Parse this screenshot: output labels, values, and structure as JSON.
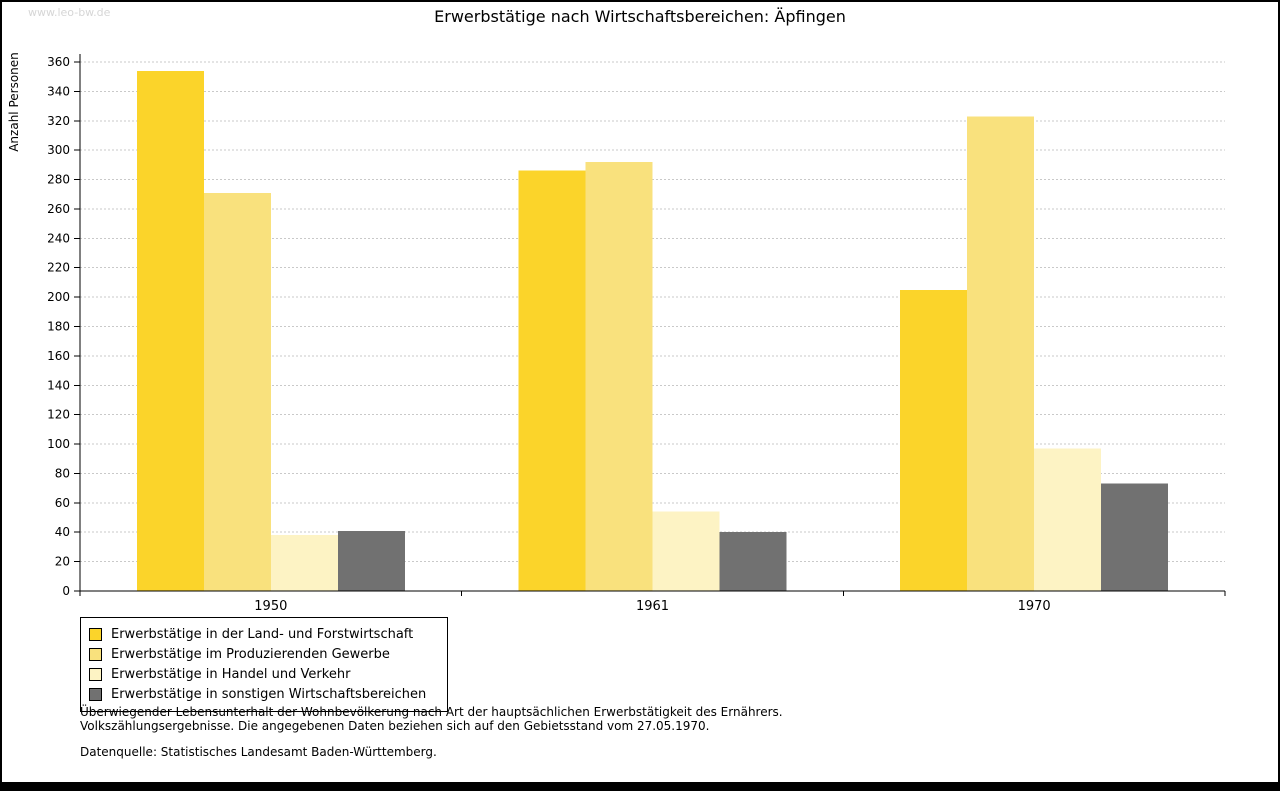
{
  "watermark": "www.leo-bw.de",
  "title": "Erwerbstätige nach Wirtschaftsbereichen: Äpfingen",
  "ylabel": "Anzahl Personen",
  "chart_data": {
    "type": "bar",
    "categories": [
      "1950",
      "1961",
      "1970"
    ],
    "series": [
      {
        "name": "Erwerbstätige in der Land- und Forstwirtschaft",
        "color": "#FBD42A",
        "values": [
          354,
          286,
          205
        ]
      },
      {
        "name": "Erwerbstätige im Produzierenden Gewerbe",
        "color": "#F9E17D",
        "values": [
          271,
          292,
          323
        ]
      },
      {
        "name": "Erwerbstätige in Handel und Verkehr",
        "color": "#FDF3C4",
        "values": [
          38,
          54,
          97
        ]
      },
      {
        "name": "Erwerbstätige in sonstigen Wirtschaftsbereichen",
        "color": "#717171",
        "values": [
          41,
          40,
          73
        ]
      }
    ],
    "title": "Erwerbstätige nach Wirtschaftsbereichen: Äpfingen",
    "xlabel": "",
    "ylabel": "Anzahl Personen",
    "ylim": [
      0,
      360
    ],
    "ytick_step": 20,
    "grid": "horizontal-dashed",
    "legend_position": "bottom-left",
    "grid_color": "#c9c9c9",
    "axis_color": "#000000"
  },
  "footnotes": {
    "line1": "Überwiegender Lebensunterhalt der Wohnbevölkerung nach Art der hauptsächlichen Erwerbstätigkeit des Ernährers.",
    "line2": "Volkszählungsergebnisse. Die angegebenen Daten beziehen sich auf den Gebietsstand vom 27.05.1970.",
    "source": "Datenquelle: Statistisches Landesamt Baden-Württemberg."
  }
}
